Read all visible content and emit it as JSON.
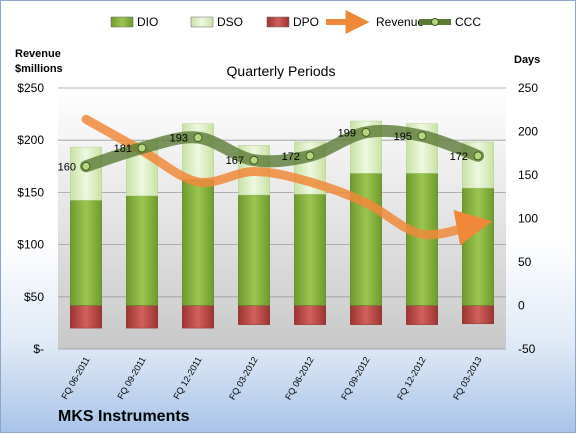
{
  "chart_data": {
    "type": "bar",
    "title": "Quarterly Periods",
    "company": "MKS Instruments",
    "ylabel_left": "Revenue\n$millions",
    "ylabel_right": "Days",
    "ylim_left": [
      0,
      250
    ],
    "ylim_right": [
      -50,
      250
    ],
    "left_ticks": [
      "$-",
      "$50",
      "$100",
      "$150",
      "$200",
      "$250"
    ],
    "right_ticks": [
      "-50",
      "0",
      "50",
      "100",
      "150",
      "200",
      "250"
    ],
    "categories": [
      "FQ 06-2011",
      "FQ 09-2011",
      "FQ 12-2011",
      "FQ 03-2012",
      "FQ 06-2012",
      "FQ 09-2012",
      "FQ 12-2012",
      "FQ 03-2013"
    ],
    "legend": [
      "DIO",
      "DSO",
      "DPO",
      "Revenue",
      "CCC"
    ],
    "colors": {
      "DIO": "#8dba45",
      "DSO": "#d9eebf",
      "DPO": "#c0504d",
      "Revenue": "#f0883a",
      "CCC": "#5b7a36"
    },
    "series": [
      {
        "name": "DIO",
        "axis": "right",
        "values": [
          121,
          126,
          145,
          127,
          128,
          152,
          152,
          135
        ]
      },
      {
        "name": "DSO",
        "axis": "right",
        "values": [
          61,
          63,
          64,
          57,
          60,
          60,
          57,
          53
        ]
      },
      {
        "name": "DPO",
        "axis": "right",
        "values": [
          -26,
          -26,
          -26,
          -22,
          -22,
          -22,
          -22,
          -21
        ]
      },
      {
        "name": "CCC",
        "axis": "right",
        "values": [
          160,
          181,
          193,
          167,
          172,
          199,
          195,
          172
        ]
      },
      {
        "name": "Revenue",
        "axis": "left",
        "values": [
          220,
          190,
          160,
          170,
          160,
          140,
          110,
          120
        ]
      }
    ],
    "data_labels": [
      "160",
      "181",
      "193",
      "167",
      "172",
      "199",
      "195",
      "172"
    ]
  }
}
